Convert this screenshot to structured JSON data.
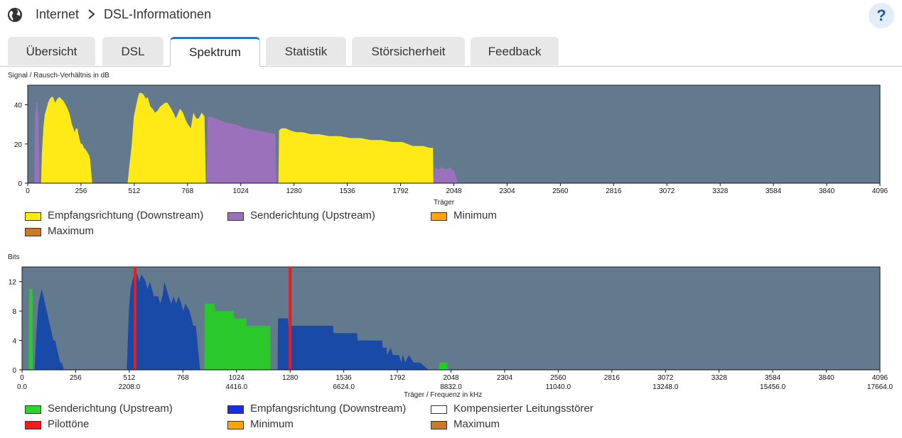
{
  "header": {
    "breadcrumb_root": "Internet",
    "breadcrumb_page": "DSL-Informationen",
    "help_label": "?"
  },
  "tabs": [
    {
      "label": "Übersicht"
    },
    {
      "label": "DSL"
    },
    {
      "label": "Spektrum",
      "active": true
    },
    {
      "label": "Statistik"
    },
    {
      "label": "Störsicherheit"
    },
    {
      "label": "Feedback"
    }
  ],
  "colors": {
    "plot_bg": "#63798e",
    "downstream_snr": "#ffea17",
    "upstream_snr": "#9b71bc",
    "bits_upstream": "#2bc82b",
    "bits_downstream": "#1a4aa8",
    "pilot": "#ee1c1c",
    "minimum": "#ffa500",
    "maximum": "#c87a28",
    "tab_active_border": "#2878c8"
  },
  "snr_chart": {
    "title": "Signal / Rausch-Verhältnis in dB",
    "xlabel": "Träger",
    "legend": [
      {
        "label": "Empfangsrichtung (Downstream)",
        "color": "#ffea17"
      },
      {
        "label": "Senderichtung (Upstream)",
        "color": "#9b71bc"
      },
      {
        "label": "Minimum",
        "color": "#ffa500"
      },
      {
        "label": "Maximum",
        "color": "#c87a28"
      }
    ]
  },
  "bits_chart": {
    "title": "Bits",
    "xlabel": "Träger / Frequenz in kHz",
    "legend": [
      {
        "label": "Senderichtung (Upstream)",
        "color": "#2bd62b"
      },
      {
        "label": "Empfangsrichtung (Downstream)",
        "color": "#1a2ee8"
      },
      {
        "label": "Kompensierter Leitungsstörer",
        "color": "#ffffff"
      },
      {
        "label": "Pilottöne",
        "color": "#ee1c1c"
      },
      {
        "label": "Minimum",
        "color": "#ffa500"
      },
      {
        "label": "Maximum",
        "color": "#c87a28"
      }
    ]
  },
  "chart_data": [
    {
      "type": "area",
      "title": "Signal / Rausch-Verhältnis in dB",
      "xlabel": "Träger",
      "ylabel": "",
      "xlim": [
        0,
        4096
      ],
      "ylim": [
        0,
        50
      ],
      "xticks": [
        0,
        256,
        512,
        768,
        1024,
        1280,
        1536,
        1792,
        2048,
        2304,
        2560,
        2816,
        3072,
        3328,
        3584,
        3840,
        4096
      ],
      "yticks": [
        0,
        20,
        40
      ],
      "series": [
        {
          "name": "Senderichtung (Upstream)",
          "color": "#9b71bc",
          "segments": [
            [
              [
                32,
                0
              ],
              [
                36,
                35
              ],
              [
                42,
                41
              ],
              [
                48,
                41
              ],
              [
                52,
                30
              ],
              [
                56,
                0
              ]
            ],
            [
              [
                860,
                0
              ],
              [
                864,
                34
              ],
              [
                880,
                34
              ],
              [
                900,
                33
              ],
              [
                950,
                31
              ],
              [
                1000,
                30
              ],
              [
                1050,
                28
              ],
              [
                1100,
                27
              ],
              [
                1150,
                26
              ],
              [
                1190,
                25
              ],
              [
                1195,
                0
              ]
            ],
            [
              [
                1950,
                0
              ],
              [
                1955,
                8
              ],
              [
                1970,
                7
              ],
              [
                1990,
                8
              ],
              [
                2010,
                7
              ],
              [
                2030,
                8
              ],
              [
                2040,
                7
              ],
              [
                2050,
                6
              ],
              [
                2060,
                3
              ],
              [
                2065,
                0
              ]
            ]
          ]
        },
        {
          "name": "Empfangsrichtung (Downstream)",
          "color": "#ffea17",
          "segments": [
            [
              [
                64,
                0
              ],
              [
                68,
                15
              ],
              [
                75,
                28
              ],
              [
                82,
                35
              ],
              [
                90,
                38
              ],
              [
                98,
                41
              ],
              [
                106,
                43
              ],
              [
                114,
                44
              ],
              [
                122,
                44
              ],
              [
                132,
                41
              ],
              [
                142,
                43
              ],
              [
                152,
                44
              ],
              [
                162,
                43
              ],
              [
                172,
                42
              ],
              [
                182,
                40
              ],
              [
                192,
                38
              ],
              [
                202,
                35
              ],
              [
                212,
                30
              ],
              [
                220,
                28
              ],
              [
                226,
                26
              ],
              [
                232,
                28
              ],
              [
                238,
                28
              ],
              [
                244,
                25
              ],
              [
                250,
                22
              ],
              [
                256,
                20
              ],
              [
                262,
                20
              ],
              [
                270,
                18
              ],
              [
                280,
                17
              ],
              [
                296,
                14
              ],
              [
                300,
                12
              ],
              [
                310,
                0
              ]
            ],
            [
              [
                480,
                0
              ],
              [
                490,
                10
              ],
              [
                500,
                20
              ],
              [
                510,
                34
              ],
              [
                520,
                39
              ],
              [
                528,
                43
              ],
              [
                536,
                46
              ],
              [
                548,
                46
              ],
              [
                558,
                45
              ],
              [
                568,
                43
              ],
              [
                576,
                44
              ],
              [
                590,
                39
              ],
              [
                600,
                38
              ],
              [
                612,
                36
              ],
              [
                624,
                37
              ],
              [
                636,
                39
              ],
              [
                648,
                40
              ],
              [
                660,
                41
              ],
              [
                672,
                41
              ],
              [
                684,
                39
              ],
              [
                694,
                37
              ],
              [
                704,
                35
              ],
              [
                712,
                33
              ],
              [
                720,
                35
              ],
              [
                732,
                38
              ],
              [
                746,
                36
              ],
              [
                760,
                32
              ],
              [
                770,
                30
              ],
              [
                784,
                28
              ],
              [
                796,
                36
              ],
              [
                810,
                33
              ],
              [
                822,
                33
              ],
              [
                836,
                36
              ],
              [
                850,
                34
              ],
              [
                856,
                0
              ]
            ],
            [
              [
                1205,
                0
              ],
              [
                1208,
                27
              ],
              [
                1220,
                28
              ],
              [
                1240,
                28
              ],
              [
                1260,
                27
              ],
              [
                1290,
                26
              ],
              [
                1320,
                26
              ],
              [
                1360,
                25
              ],
              [
                1400,
                25
              ],
              [
                1450,
                24
              ],
              [
                1500,
                24
              ],
              [
                1550,
                23
              ],
              [
                1600,
                23
              ],
              [
                1650,
                22
              ],
              [
                1700,
                22
              ],
              [
                1750,
                21
              ],
              [
                1800,
                21
              ],
              [
                1850,
                19
              ],
              [
                1900,
                19
              ],
              [
                1930,
                18
              ],
              [
                1948,
                18
              ],
              [
                1950,
                0
              ]
            ]
          ]
        }
      ]
    },
    {
      "type": "area",
      "title": "Bits",
      "xlabel": "Träger / Frequenz in kHz",
      "ylabel": "",
      "xlim": [
        0,
        4096
      ],
      "ylim": [
        0,
        14
      ],
      "xticks": [
        0,
        256,
        512,
        768,
        1024,
        1280,
        1536,
        1792,
        2048,
        2304,
        2560,
        2816,
        3072,
        3328,
        3584,
        3840,
        4096
      ],
      "xticks_khz": {
        "0": "0.0",
        "512": "2208.0",
        "1024": "4416.0",
        "1536": "6624.0",
        "2048": "8832.0",
        "2560": "11040.0",
        "3072": "13248.0",
        "3584": "15456.0",
        "4096": "17664.0"
      },
      "yticks": [
        0,
        4,
        8,
        12
      ],
      "pilot_tones": [
        540,
        1280
      ],
      "series": [
        {
          "name": "Senderichtung (Upstream)",
          "color": "#2bc82b",
          "segments": [
            [
              [
                32,
                0
              ],
              [
                34,
                11
              ],
              [
                50,
                11
              ],
              [
                52,
                0
              ]
            ],
            [
              [
                870,
                0
              ],
              [
                872,
                9
              ],
              [
                920,
                9
              ],
              [
                922,
                8
              ],
              [
                1010,
                8
              ],
              [
                1012,
                7
              ],
              [
                1070,
                7
              ],
              [
                1072,
                6
              ],
              [
                1185,
                6
              ],
              [
                1187,
                0
              ]
            ],
            [
              [
                1990,
                0
              ],
              [
                1992,
                1
              ],
              [
                2030,
                1
              ],
              [
                2032,
                0
              ]
            ]
          ]
        },
        {
          "name": "Empfangsrichtung (Downstream)",
          "color": "#1a4aa8",
          "segments": [
            [
              [
                60,
                0
              ],
              [
                68,
                5
              ],
              [
                78,
                9
              ],
              [
                86,
                10
              ],
              [
                94,
                11
              ],
              [
                102,
                10
              ],
              [
                110,
                9
              ],
              [
                118,
                8
              ],
              [
                126,
                7
              ],
              [
                134,
                6
              ],
              [
                142,
                5
              ],
              [
                150,
                4
              ],
              [
                158,
                4
              ],
              [
                166,
                3
              ],
              [
                174,
                2
              ],
              [
                182,
                1
              ],
              [
                190,
                1
              ],
              [
                200,
                0
              ]
            ],
            [
              [
                500,
                0
              ],
              [
                510,
                8
              ],
              [
                518,
                11
              ],
              [
                526,
                12
              ],
              [
                534,
                13
              ],
              [
                550,
                13
              ],
              [
                560,
                12
              ],
              [
                570,
                13
              ],
              [
                590,
                12
              ],
              [
                600,
                11
              ],
              [
                610,
                12
              ],
              [
                620,
                11
              ],
              [
                630,
                10
              ],
              [
                650,
                10
              ],
              [
                660,
                9
              ],
              [
                670,
                10
              ],
              [
                680,
                12
              ],
              [
                690,
                11
              ],
              [
                700,
                10
              ],
              [
                712,
                9
              ],
              [
                724,
                10
              ],
              [
                736,
                9
              ],
              [
                748,
                10
              ],
              [
                760,
                9
              ],
              [
                770,
                8
              ],
              [
                780,
                9
              ],
              [
                800,
                8
              ],
              [
                818,
                6
              ],
              [
                830,
                6
              ],
              [
                850,
                0
              ]
            ],
            [
              [
                1220,
                0
              ],
              [
                1222,
                7
              ],
              [
                1270,
                7
              ],
              [
                1272,
                6
              ],
              [
                1485,
                6
              ],
              [
                1487,
                5
              ],
              [
                1600,
                5
              ],
              [
                1602,
                4
              ],
              [
                1720,
                4
              ],
              [
                1722,
                3
              ],
              [
                1740,
                3
              ],
              [
                1742,
                2
              ],
              [
                1760,
                3
              ],
              [
                1770,
                2
              ],
              [
                1800,
                2
              ],
              [
                1810,
                1
              ],
              [
                1818,
                2
              ],
              [
                1830,
                1
              ],
              [
                1846,
                2
              ],
              [
                1870,
                1
              ],
              [
                1900,
                1
              ],
              [
                1940,
                0
              ]
            ]
          ]
        }
      ]
    }
  ]
}
